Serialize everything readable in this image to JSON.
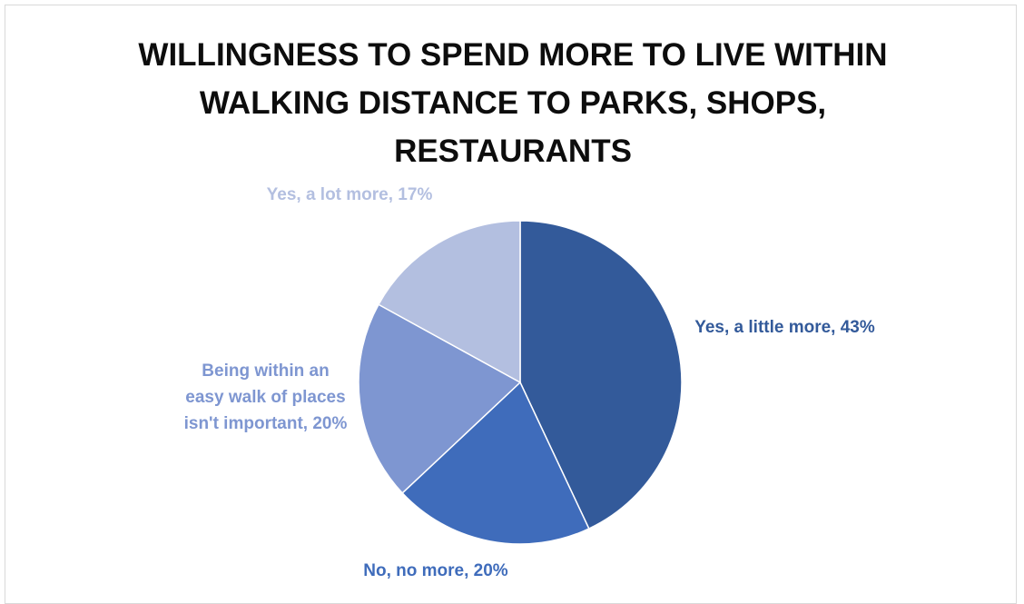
{
  "chart_data": {
    "type": "pie",
    "title": "WILLINGNESS TO SPEND MORE TO LIVE WITHIN WALKING DISTANCE TO PARKS, SHOPS, RESTAURANTS",
    "slices": [
      {
        "label": "Yes, a little more",
        "value": 43,
        "data_label": "Yes, a little more, 43%",
        "color": "#335a9a"
      },
      {
        "label": "No, no more",
        "value": 20,
        "data_label": "No, no more, 20%",
        "color": "#3f6cbb"
      },
      {
        "label": "Being within an easy walk of places isn't important",
        "value": 20,
        "data_label": "Being within an easy walk of places isn't important, 20%",
        "color": "#7e96d1"
      },
      {
        "label": "Yes, a lot more",
        "value": 17,
        "data_label": "Yes, a lot more, 17%",
        "color": "#b3bfe0"
      }
    ],
    "start_angle": "12 o'clock",
    "direction": "clockwise",
    "legend": "none"
  }
}
